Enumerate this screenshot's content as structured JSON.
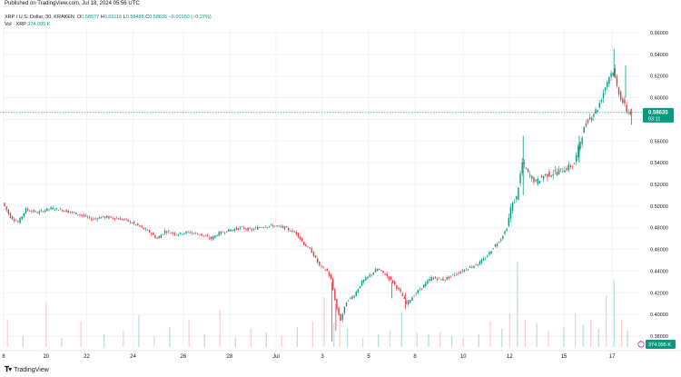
{
  "header": {
    "published": "Published on TradingView.com, Jul 18, 2024 05:56 UTC",
    "symbol_line": "XRP / U.S. Dollar, 30, KRAKEN",
    "ohlc": [
      {
        "label": "O",
        "value": "0.58577"
      },
      {
        "label": "H",
        "value": "0.59116"
      },
      {
        "label": "L",
        "value": "0.58488"
      },
      {
        "label": "C",
        "value": "0.58635"
      }
    ],
    "change": "−0.00160 (−0.27%)",
    "volume_label": "Vol · XRP",
    "volume_value": "374.095 K"
  },
  "footer": {
    "brand": "TradingView",
    "brand_icon": "tradingview-logo-icon"
  },
  "colors": {
    "up": "#089981",
    "down": "#f23645",
    "price_line": "#089981",
    "vol_up": "#b2dfdb",
    "vol_down": "#facdd0"
  },
  "chart_data": {
    "type": "candlestick",
    "symbol": "XRP / U.S. Dollar",
    "interval": "30",
    "exchange": "KRAKEN",
    "price_ticks": [
      "0.66000",
      "0.64000",
      "0.62000",
      "0.60000",
      "0.58000",
      "0.56000",
      "0.54000",
      "0.52000",
      "0.50000",
      "0.48000",
      "0.46000",
      "0.44000",
      "0.42000",
      "0.40000",
      "0.38000"
    ],
    "ylim": [
      0.37,
      0.665
    ],
    "x_ticks": [
      "8",
      "20",
      "22",
      "24",
      "26",
      "28",
      "Jul",
      "3",
      "5",
      "8",
      "10",
      "12",
      "15",
      "17"
    ],
    "last_price": "0.58635",
    "countdown": "03:11",
    "volume_last": "374.095 K",
    "grid": true,
    "price_path": [
      [
        0,
        0.503
      ],
      [
        4,
        0.49
      ],
      [
        8,
        0.485
      ],
      [
        12,
        0.497
      ],
      [
        18,
        0.494
      ],
      [
        25,
        0.498
      ],
      [
        32,
        0.496
      ],
      [
        40,
        0.492
      ],
      [
        46,
        0.488
      ],
      [
        52,
        0.49
      ],
      [
        58,
        0.489
      ],
      [
        64,
        0.487
      ],
      [
        70,
        0.482
      ],
      [
        76,
        0.476
      ],
      [
        80,
        0.47
      ],
      [
        84,
        0.477
      ],
      [
        90,
        0.474
      ],
      [
        96,
        0.476
      ],
      [
        102,
        0.474
      ],
      [
        108,
        0.47
      ],
      [
        112,
        0.475
      ],
      [
        118,
        0.478
      ],
      [
        124,
        0.48
      ],
      [
        128,
        0.478
      ],
      [
        134,
        0.481
      ],
      [
        140,
        0.482
      ],
      [
        146,
        0.48
      ],
      [
        152,
        0.475
      ],
      [
        156,
        0.465
      ],
      [
        160,
        0.458
      ],
      [
        164,
        0.445
      ],
      [
        168,
        0.44
      ],
      [
        170,
        0.432
      ],
      [
        173,
        0.405
      ],
      [
        175,
        0.395
      ],
      [
        178,
        0.412
      ],
      [
        182,
        0.418
      ],
      [
        186,
        0.43
      ],
      [
        190,
        0.436
      ],
      [
        194,
        0.442
      ],
      [
        198,
        0.437
      ],
      [
        202,
        0.43
      ],
      [
        206,
        0.42
      ],
      [
        209,
        0.41
      ],
      [
        213,
        0.418
      ],
      [
        218,
        0.427
      ],
      [
        222,
        0.434
      ],
      [
        228,
        0.432
      ],
      [
        234,
        0.437
      ],
      [
        240,
        0.442
      ],
      [
        246,
        0.447
      ],
      [
        250,
        0.452
      ],
      [
        254,
        0.462
      ],
      [
        258,
        0.47
      ],
      [
        261,
        0.48
      ],
      [
        263,
        0.498
      ],
      [
        266,
        0.508
      ],
      [
        269,
        0.54
      ],
      [
        272,
        0.53
      ],
      [
        276,
        0.522
      ],
      [
        280,
        0.528
      ],
      [
        286,
        0.531
      ],
      [
        292,
        0.535
      ],
      [
        296,
        0.539
      ],
      [
        299,
        0.56
      ],
      [
        302,
        0.577
      ],
      [
        305,
        0.584
      ],
      [
        308,
        0.59
      ],
      [
        311,
        0.605
      ],
      [
        314,
        0.62
      ],
      [
        316,
        0.625
      ],
      [
        318,
        0.61
      ],
      [
        320,
        0.6
      ],
      [
        323,
        0.588
      ],
      [
        325,
        0.586
      ]
    ],
    "spikes": [
      [
        170,
        0.43,
        0.375
      ],
      [
        172,
        0.41,
        0.385
      ],
      [
        201,
        0.43,
        0.415
      ],
      [
        208,
        0.42,
        0.405
      ],
      [
        269,
        0.51,
        0.565
      ],
      [
        298,
        0.54,
        0.565
      ],
      [
        316,
        0.62,
        0.645
      ],
      [
        322,
        0.6,
        0.63
      ],
      [
        325,
        0.59,
        0.575
      ]
    ],
    "volume": [
      [
        2,
        30
      ],
      [
        10,
        12
      ],
      [
        22,
        48
      ],
      [
        30,
        10
      ],
      [
        40,
        28
      ],
      [
        52,
        14
      ],
      [
        62,
        18
      ],
      [
        70,
        34
      ],
      [
        78,
        12
      ],
      [
        86,
        22
      ],
      [
        96,
        30
      ],
      [
        104,
        14
      ],
      [
        112,
        40
      ],
      [
        120,
        10
      ],
      [
        128,
        20
      ],
      [
        136,
        16
      ],
      [
        144,
        12
      ],
      [
        152,
        22
      ],
      [
        160,
        28
      ],
      [
        166,
        54
      ],
      [
        171,
        26
      ],
      [
        174,
        44
      ],
      [
        178,
        20
      ],
      [
        186,
        10
      ],
      [
        194,
        14
      ],
      [
        200,
        18
      ],
      [
        206,
        38
      ],
      [
        214,
        16
      ],
      [
        220,
        14
      ],
      [
        226,
        16
      ],
      [
        232,
        12
      ],
      [
        238,
        10
      ],
      [
        246,
        14
      ],
      [
        252,
        28
      ],
      [
        258,
        20
      ],
      [
        262,
        36
      ],
      [
        266,
        92
      ],
      [
        270,
        30
      ],
      [
        276,
        26
      ],
      [
        282,
        18
      ],
      [
        290,
        22
      ],
      [
        296,
        36
      ],
      [
        300,
        24
      ],
      [
        304,
        30
      ],
      [
        308,
        20
      ],
      [
        312,
        56
      ],
      [
        316,
        72
      ],
      [
        320,
        30
      ],
      [
        323,
        18
      ]
    ],
    "vol_up_set": [
      10,
      30,
      52,
      70,
      86,
      104,
      120,
      136,
      152,
      171,
      178,
      194,
      206,
      220,
      232,
      246,
      258,
      266,
      276,
      290,
      300,
      308,
      316,
      323
    ],
    "vol_max": 100
  }
}
